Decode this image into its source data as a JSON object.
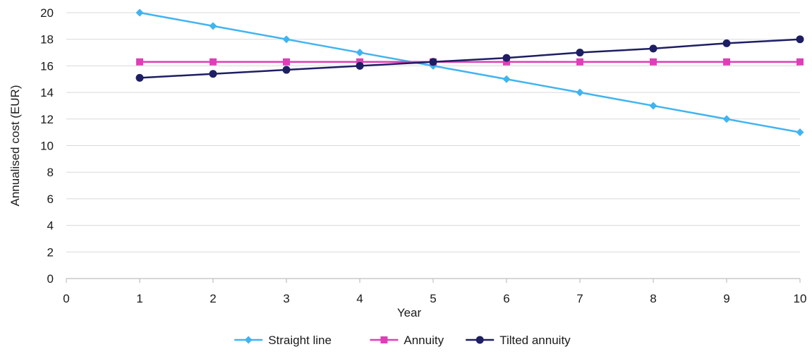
{
  "chart_data": {
    "type": "line",
    "xlabel": "Year",
    "ylabel": "Annualised cost (EUR)",
    "xlim": [
      0,
      10
    ],
    "ylim": [
      0,
      20
    ],
    "x_ticks": [
      0,
      1,
      2,
      3,
      4,
      5,
      6,
      7,
      8,
      9,
      10
    ],
    "y_ticks": [
      0,
      2,
      4,
      6,
      8,
      10,
      12,
      14,
      16,
      18,
      20
    ],
    "grid": "horizontal",
    "legend_position": "bottom-center",
    "x": [
      1,
      2,
      3,
      4,
      5,
      6,
      7,
      8,
      9,
      10
    ],
    "series": [
      {
        "name": "Straight line",
        "color": "#41B4F0",
        "marker": "diamond",
        "values": [
          20,
          19,
          18,
          17,
          16,
          15,
          14,
          13,
          12,
          11
        ]
      },
      {
        "name": "Annuity",
        "color": "#DE3FB7",
        "marker": "square",
        "values": [
          16.3,
          16.3,
          16.3,
          16.3,
          16.3,
          16.3,
          16.3,
          16.3,
          16.3,
          16.3
        ]
      },
      {
        "name": "Tilted annuity",
        "color": "#1E1E64",
        "marker": "circle",
        "values": [
          15.1,
          15.4,
          15.7,
          16.0,
          16.3,
          16.6,
          17.0,
          17.3,
          17.7,
          18.0
        ]
      }
    ]
  }
}
